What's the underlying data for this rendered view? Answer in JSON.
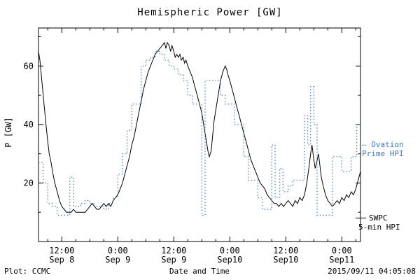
{
  "footer": {
    "left": "Plot: CCMC",
    "right": "2015/09/11 04:05:08"
  },
  "legend": {
    "ovation": {
      "line1": "– Ovation",
      "line2": "Prime HPI",
      "color": "#4477bb"
    },
    "swpc": {
      "line1": "SWPC",
      "line2": "5-min HPI",
      "color": "#000000"
    }
  },
  "chart_data": {
    "type": "line",
    "title": "Hemispheric Power [GW]",
    "xlabel": "Date and Time",
    "ylabel": "P [GW]",
    "x_unit": "hours since 2015-09-08 00:00",
    "xlim": [
      7,
      76
    ],
    "ylim": [
      0,
      73
    ],
    "y_ticks": [
      20,
      40,
      60
    ],
    "y_minor_step": 10,
    "x_minor_step": 3,
    "x_ticks": [
      {
        "t": 12,
        "time": "12:00",
        "date": "Sep 8"
      },
      {
        "t": 24,
        "time": "0:00",
        "date": "Sep 9"
      },
      {
        "t": 36,
        "time": "12:00",
        "date": "Sep 9"
      },
      {
        "t": 48,
        "time": "0:00",
        "date": "Sep10"
      },
      {
        "t": 60,
        "time": "12:00",
        "date": "Sep10"
      },
      {
        "t": 72,
        "time": "0:00",
        "date": "Sep11"
      }
    ],
    "series": [
      {
        "name": "SWPC 5-min HPI",
        "color": "#000000",
        "style": "solid",
        "step": false,
        "points": [
          [
            7,
            65
          ],
          [
            7.3,
            62
          ],
          [
            7.6,
            57
          ],
          [
            8,
            50
          ],
          [
            8.3,
            45
          ],
          [
            8.6,
            40
          ],
          [
            9,
            34
          ],
          [
            9.3,
            30
          ],
          [
            9.7,
            27
          ],
          [
            10,
            24
          ],
          [
            10.5,
            20
          ],
          [
            11,
            17
          ],
          [
            11.5,
            14
          ],
          [
            12,
            12
          ],
          [
            12.5,
            11
          ],
          [
            13,
            10
          ],
          [
            14,
            10
          ],
          [
            14.5,
            11
          ],
          [
            15,
            10
          ],
          [
            16,
            10
          ],
          [
            17,
            10
          ],
          [
            17.5,
            11
          ],
          [
            18,
            12
          ],
          [
            18.5,
            13
          ],
          [
            19,
            12
          ],
          [
            19.5,
            11
          ],
          [
            20,
            11
          ],
          [
            20.5,
            12
          ],
          [
            21,
            13
          ],
          [
            21.5,
            12
          ],
          [
            22,
            13
          ],
          [
            22.5,
            12
          ],
          [
            23,
            14
          ],
          [
            23.5,
            15
          ],
          [
            24,
            16
          ],
          [
            24.5,
            18
          ],
          [
            25,
            20
          ],
          [
            25.5,
            23
          ],
          [
            26,
            26
          ],
          [
            26.5,
            29
          ],
          [
            27,
            33
          ],
          [
            27.5,
            36
          ],
          [
            28,
            40
          ],
          [
            28.5,
            44
          ],
          [
            29,
            48
          ],
          [
            29.5,
            52
          ],
          [
            30,
            55
          ],
          [
            30.5,
            58
          ],
          [
            31,
            60
          ],
          [
            31.5,
            62
          ],
          [
            32,
            64
          ],
          [
            32.5,
            65
          ],
          [
            33,
            66
          ],
          [
            33.5,
            67
          ],
          [
            34,
            68
          ],
          [
            34.3,
            66
          ],
          [
            34.6,
            68
          ],
          [
            35,
            67
          ],
          [
            35.3,
            65
          ],
          [
            35.6,
            67
          ],
          [
            36,
            65
          ],
          [
            36.3,
            63
          ],
          [
            36.6,
            64
          ],
          [
            37,
            63
          ],
          [
            37.3,
            64
          ],
          [
            37.6,
            62
          ],
          [
            38,
            63
          ],
          [
            38.3,
            61
          ],
          [
            38.6,
            62
          ],
          [
            39,
            60
          ],
          [
            39.5,
            58
          ],
          [
            40,
            56
          ],
          [
            40.5,
            53
          ],
          [
            41,
            50
          ],
          [
            41.5,
            47
          ],
          [
            42,
            44
          ],
          [
            42.3,
            41
          ],
          [
            42.6,
            38
          ],
          [
            43,
            34
          ],
          [
            43.3,
            31
          ],
          [
            43.6,
            29
          ],
          [
            44,
            31
          ],
          [
            44.3,
            36
          ],
          [
            44.6,
            41
          ],
          [
            45,
            45
          ],
          [
            45.5,
            50
          ],
          [
            46,
            55
          ],
          [
            46.5,
            58
          ],
          [
            47,
            60
          ],
          [
            47.3,
            59
          ],
          [
            47.6,
            57
          ],
          [
            48,
            55
          ],
          [
            48.5,
            52
          ],
          [
            49,
            49
          ],
          [
            49.5,
            46
          ],
          [
            50,
            43
          ],
          [
            50.5,
            40
          ],
          [
            51,
            37
          ],
          [
            51.5,
            34
          ],
          [
            52,
            31
          ],
          [
            52.5,
            28
          ],
          [
            53,
            26
          ],
          [
            53.5,
            24
          ],
          [
            54,
            22
          ],
          [
            54.5,
            20
          ],
          [
            55,
            19
          ],
          [
            55.5,
            18
          ],
          [
            56,
            16
          ],
          [
            56.5,
            15
          ],
          [
            57,
            14
          ],
          [
            57.5,
            13
          ],
          [
            58,
            13
          ],
          [
            58.5,
            12
          ],
          [
            59,
            13
          ],
          [
            59.5,
            12
          ],
          [
            60,
            13
          ],
          [
            60.5,
            14
          ],
          [
            61,
            13
          ],
          [
            61.5,
            12
          ],
          [
            62,
            14
          ],
          [
            62.5,
            13
          ],
          [
            63,
            15
          ],
          [
            63.5,
            14
          ],
          [
            64,
            16
          ],
          [
            64.5,
            20
          ],
          [
            65,
            26
          ],
          [
            65.3,
            30
          ],
          [
            65.6,
            33
          ],
          [
            66,
            28
          ],
          [
            66.3,
            25
          ],
          [
            66.6,
            27
          ],
          [
            67,
            30
          ],
          [
            67.3,
            26
          ],
          [
            67.6,
            22
          ],
          [
            68,
            19
          ],
          [
            68.5,
            16
          ],
          [
            69,
            14
          ],
          [
            69.5,
            13
          ],
          [
            70,
            12
          ],
          [
            70.5,
            13
          ],
          [
            71,
            14
          ],
          [
            71.5,
            13
          ],
          [
            72,
            15
          ],
          [
            72.5,
            14
          ],
          [
            73,
            16
          ],
          [
            73.5,
            15
          ],
          [
            74,
            17
          ],
          [
            74.5,
            16
          ],
          [
            75,
            18
          ],
          [
            75.5,
            21
          ],
          [
            76,
            24
          ]
        ]
      },
      {
        "name": "Ovation Prime HPI",
        "color": "#4477bb",
        "style": "dotted",
        "step": true,
        "points": [
          [
            7,
            27
          ],
          [
            8,
            20
          ],
          [
            9,
            13
          ],
          [
            10,
            12
          ],
          [
            11,
            9
          ],
          [
            13,
            9
          ],
          [
            13.7,
            22
          ],
          [
            14.5,
            12
          ],
          [
            16,
            13
          ],
          [
            17,
            14
          ],
          [
            18,
            13
          ],
          [
            19,
            12
          ],
          [
            21,
            11
          ],
          [
            22,
            13
          ],
          [
            23,
            15
          ],
          [
            24,
            23
          ],
          [
            25,
            30
          ],
          [
            26,
            38
          ],
          [
            27,
            47
          ],
          [
            28.5,
            47
          ],
          [
            29,
            60
          ],
          [
            30,
            62
          ],
          [
            31,
            63
          ],
          [
            32,
            65
          ],
          [
            33,
            64
          ],
          [
            34,
            62
          ],
          [
            35,
            60
          ],
          [
            36,
            59
          ],
          [
            37,
            57
          ],
          [
            38,
            55
          ],
          [
            39,
            50
          ],
          [
            40,
            47
          ],
          [
            41.5,
            47
          ],
          [
            42,
            9
          ],
          [
            42.7,
            55
          ],
          [
            45.5,
            55
          ],
          [
            46,
            50
          ],
          [
            47,
            47
          ],
          [
            48.5,
            47
          ],
          [
            49,
            40
          ],
          [
            50.5,
            40
          ],
          [
            51,
            29
          ],
          [
            52,
            21
          ],
          [
            53.5,
            21
          ],
          [
            54,
            15
          ],
          [
            55,
            11
          ],
          [
            56.5,
            11
          ],
          [
            57,
            33
          ],
          [
            57.7,
            15
          ],
          [
            58.7,
            25
          ],
          [
            59.4,
            17
          ],
          [
            60.5,
            19
          ],
          [
            61.5,
            21
          ],
          [
            63.5,
            21
          ],
          [
            64,
            43
          ],
          [
            64.7,
            33
          ],
          [
            65.3,
            53
          ],
          [
            66,
            40
          ],
          [
            66.7,
            9
          ],
          [
            69.7,
            9
          ],
          [
            70,
            29
          ],
          [
            72,
            24
          ],
          [
            73.5,
            24
          ],
          [
            74,
            29
          ],
          [
            75.2,
            40
          ],
          [
            76,
            40
          ]
        ]
      }
    ]
  }
}
